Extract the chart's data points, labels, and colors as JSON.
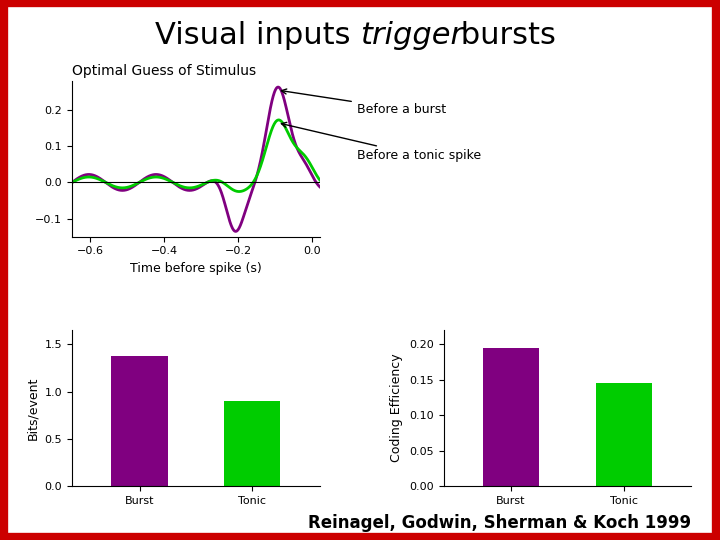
{
  "title_fontsize": 22,
  "bg_color": "#ffffff",
  "border_color": "#cc0000",
  "line_color_burst": "#800080",
  "line_color_tonic": "#00cc00",
  "bar_color_burst": "#800080",
  "bar_color_tonic": "#00cc00",
  "subplot_title": "Optimal Guess of Stimulus",
  "xlabel": "Time before spike (s)",
  "ylabel_left": "Bits/event",
  "ylabel_right": "Coding Efficiency",
  "annotation_burst": "Before a burst",
  "annotation_tonic": "Before a tonic spike",
  "xticks": [
    -0.6,
    -0.4,
    -0.2,
    0
  ],
  "yticks_line": [
    -0.1,
    0,
    0.1,
    0.2
  ],
  "bar_categories": [
    "Burst",
    "Tonic"
  ],
  "bar_bits": [
    1.38,
    0.9
  ],
  "bar_coding": [
    0.195,
    0.145
  ],
  "ylim_line": [
    -0.15,
    0.28
  ],
  "ylim_bits": [
    0,
    1.65
  ],
  "ylim_coding": [
    0,
    0.22
  ],
  "footer": "Reinagel, Godwin, Sherman & Koch 1999",
  "footer_fontsize": 12,
  "line_xlim": [
    -0.65,
    0.02
  ]
}
